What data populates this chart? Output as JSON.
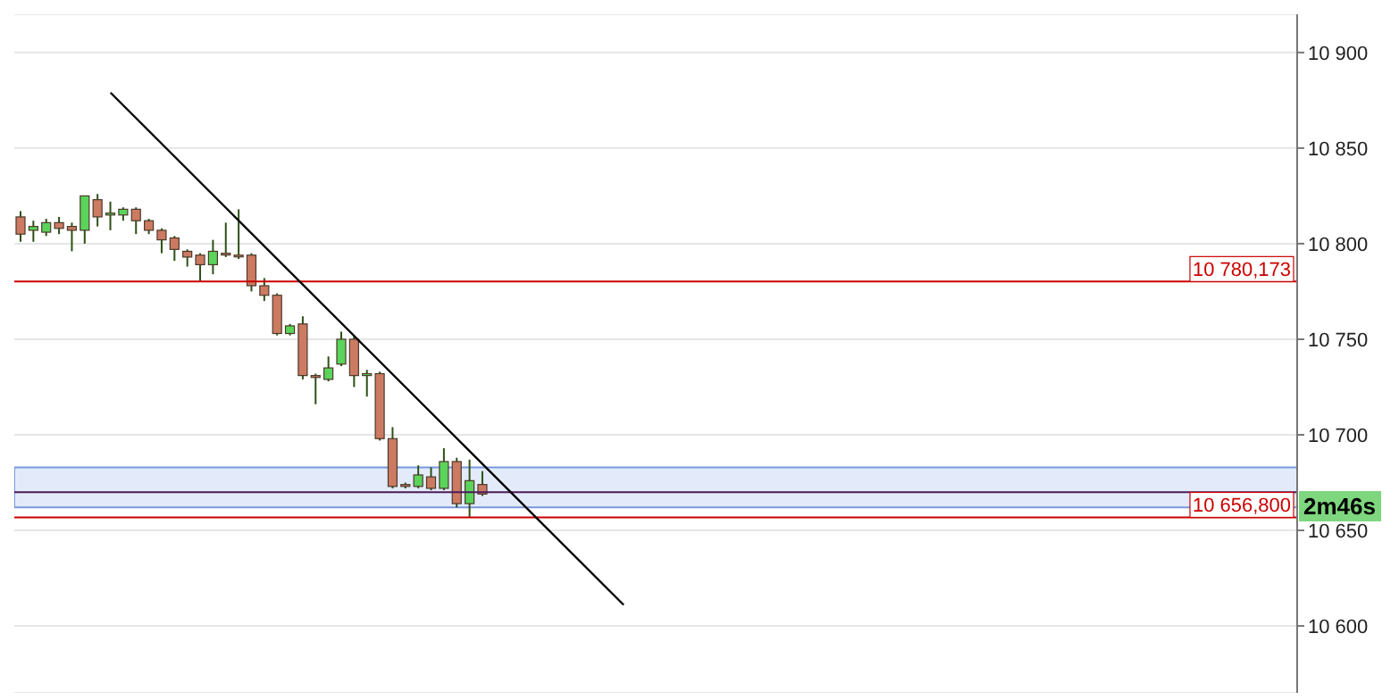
{
  "chart_data": {
    "type": "candlestick",
    "categories": [
      null,
      null,
      null,
      null,
      null,
      null,
      null,
      null,
      null,
      null,
      null,
      null,
      null,
      null,
      null,
      null,
      null,
      null,
      null,
      null,
      null,
      null,
      null,
      null,
      null,
      null,
      null,
      null,
      null,
      null,
      null,
      null,
      null,
      null,
      null,
      null,
      null,
      null,
      null,
      null,
      null,
      null,
      null,
      null,
      null,
      null,
      null,
      null,
      null,
      null,
      null,
      null,
      null,
      null,
      null,
      null,
      null,
      null,
      null,
      null,
      null,
      null,
      null,
      null,
      null,
      null,
      null,
      null,
      null,
      null,
      null,
      null,
      null,
      null,
      null,
      null,
      null,
      null,
      null,
      null,
      null,
      null,
      null,
      null,
      null,
      null,
      null,
      null,
      null,
      null,
      null,
      null,
      null,
      null,
      null,
      null,
      null,
      null,
      null,
      null
    ],
    "ohlc": [
      [
        10814,
        10817,
        10801,
        10805
      ],
      [
        10807,
        10812,
        10801,
        10809
      ],
      [
        10806,
        10813,
        10804,
        10811
      ],
      [
        10811,
        10814,
        10805,
        10808
      ],
      [
        10809,
        10811,
        10796,
        10807
      ],
      [
        10807,
        10825,
        10800,
        10825
      ],
      [
        10823,
        10826,
        10809,
        10814
      ],
      [
        10815,
        10822,
        10807,
        10816
      ],
      [
        10815,
        10819,
        10812,
        10818
      ],
      [
        10818,
        10819,
        10805,
        10812
      ],
      [
        10812,
        10813,
        10805,
        10807
      ],
      [
        10807,
        10808,
        10795,
        10802
      ],
      [
        10803,
        10804,
        10791,
        10797
      ],
      [
        10796,
        10797,
        10788,
        10793
      ],
      [
        10794,
        10795,
        10780,
        10789
      ],
      [
        10789,
        10802,
        10784,
        10796
      ],
      [
        10795,
        10811,
        10793,
        10795
      ],
      [
        10794,
        10818,
        10792,
        10794
      ],
      [
        10794,
        10795,
        10775,
        10778
      ],
      [
        10778,
        10782,
        10770,
        10773
      ],
      [
        10773,
        10774,
        10752,
        10753
      ],
      [
        10753,
        10758,
        10752,
        10757
      ],
      [
        10758,
        10762,
        10729,
        10731
      ],
      [
        10731,
        10732,
        10716,
        10730
      ],
      [
        10729,
        10741,
        10728,
        10735
      ],
      [
        10737,
        10754,
        10736,
        10750
      ],
      [
        10750,
        10752,
        10725,
        10731
      ],
      [
        10731,
        10734,
        10720,
        10732
      ],
      [
        10732,
        10733,
        10697,
        10698
      ],
      [
        10698,
        10704,
        10672,
        10673
      ],
      [
        10674,
        10675,
        10672,
        10673
      ],
      [
        10673,
        10684,
        10672,
        10679
      ],
      [
        10678,
        10683,
        10671,
        10672
      ],
      [
        10672,
        10693,
        10671,
        10686
      ],
      [
        10686,
        10688,
        10662,
        10664
      ],
      [
        10664,
        10687,
        10657,
        10676
      ],
      [
        10674,
        10681,
        10668,
        10669
      ],
      null,
      null,
      null,
      null,
      null,
      null,
      null,
      null,
      null,
      null,
      null,
      null,
      null,
      null,
      null,
      null,
      null,
      null,
      null,
      null,
      null,
      null,
      null,
      null,
      null,
      null,
      null,
      null,
      null,
      null,
      null,
      null,
      null,
      null,
      null,
      null,
      null,
      null,
      null,
      null,
      null,
      null,
      null,
      null,
      null,
      null,
      null,
      null,
      null,
      null,
      null,
      null,
      null,
      null,
      null,
      null,
      null,
      null,
      null,
      null,
      null,
      null,
      null
    ],
    "colors": [
      "#cd7a62",
      "#5ad45a",
      "#5ad45a",
      "#cd7a62",
      "#cd7a62",
      "#5ad45a",
      "#cd7a62",
      "#5ad45a",
      "#5ad45a",
      "#cd7a62",
      "#cd7a62",
      "#cd7a62",
      "#cd7a62",
      "#cd7a62",
      "#cd7a62",
      "#5ad45a",
      "#cd7a62",
      "#cd7a62",
      "#cd7a62",
      "#cd7a62",
      "#cd7a62",
      "#5ad45a",
      "#cd7a62",
      "#cd7a62",
      "#5ad45a",
      "#5ad45a",
      "#cd7a62",
      "#5ad45a",
      "#cd7a62",
      "#cd7a62",
      "#cd7a62",
      "#5ad45a",
      "#cd7a62",
      "#5ad45a",
      "#cd7a62",
      "#5ad45a",
      "#cd7a62",
      null,
      null,
      null,
      null,
      null,
      null,
      null,
      null,
      null,
      null,
      null,
      null,
      null,
      null,
      null,
      null,
      null,
      null,
      null,
      null,
      null,
      null,
      null,
      null,
      null,
      null,
      null,
      null,
      null,
      null,
      null,
      null,
      null,
      null,
      null,
      null,
      null,
      null,
      null,
      null,
      null,
      null,
      null,
      null,
      null,
      null,
      null,
      null,
      null,
      null,
      null,
      null,
      null,
      null,
      null,
      null,
      null,
      null,
      null,
      null,
      null,
      null,
      null
    ],
    "series": [
      {
        "type": "line",
        "values": [
          null,
          null,
          null,
          null,
          null,
          null,
          null,
          10879,
          null,
          null,
          null,
          null,
          null,
          null,
          null,
          null,
          null,
          null,
          null,
          null,
          null,
          null,
          null,
          null,
          null,
          null,
          null,
          null,
          null,
          null,
          null,
          null,
          null,
          null,
          null,
          null,
          null,
          null,
          null,
          null,
          null,
          null,
          null,
          null,
          null,
          null,
          null,
          10611,
          null,
          null,
          null,
          null,
          null,
          null,
          null,
          null,
          null,
          null,
          null,
          null,
          null,
          null,
          null,
          null,
          null,
          null,
          null,
          null,
          null,
          null,
          null,
          null,
          null,
          null,
          null,
          null,
          null,
          null,
          null,
          null,
          null,
          null,
          null,
          null,
          null,
          null,
          null,
          null,
          null,
          null,
          null,
          null,
          null,
          null,
          null,
          null,
          null,
          null,
          null,
          null
        ],
        "color": "#000000"
      }
    ],
    "ylim": [
      10565,
      10920
    ],
    "yticks": [
      {
        "value": 10600,
        "label": "10 600"
      },
      {
        "value": 10650,
        "label": "10 650"
      },
      {
        "value": 10700,
        "label": "10 700"
      },
      {
        "value": 10750,
        "label": "10 750"
      },
      {
        "value": 10800,
        "label": "10 800"
      },
      {
        "value": 10850,
        "label": "10 850"
      },
      {
        "value": 10900,
        "label": "10 900"
      }
    ],
    "tick_labels": "y",
    "grid": "y",
    "ref_lines": [
      {
        "axis": "y",
        "value": 10780.173,
        "label": "10 780,173",
        "color": "#cc0000"
      },
      {
        "axis": "y",
        "value": 10670,
        "label": null,
        "color": "#4b1a5a"
      },
      {
        "axis": "y",
        "value": 10656.8,
        "label": "10 656,800",
        "color": "#cc0000"
      }
    ],
    "bands": [
      {
        "axis": "y",
        "from": 10662,
        "to": 10683,
        "color": "#dce6fa"
      }
    ],
    "annotations": [
      "2m46s"
    ]
  }
}
